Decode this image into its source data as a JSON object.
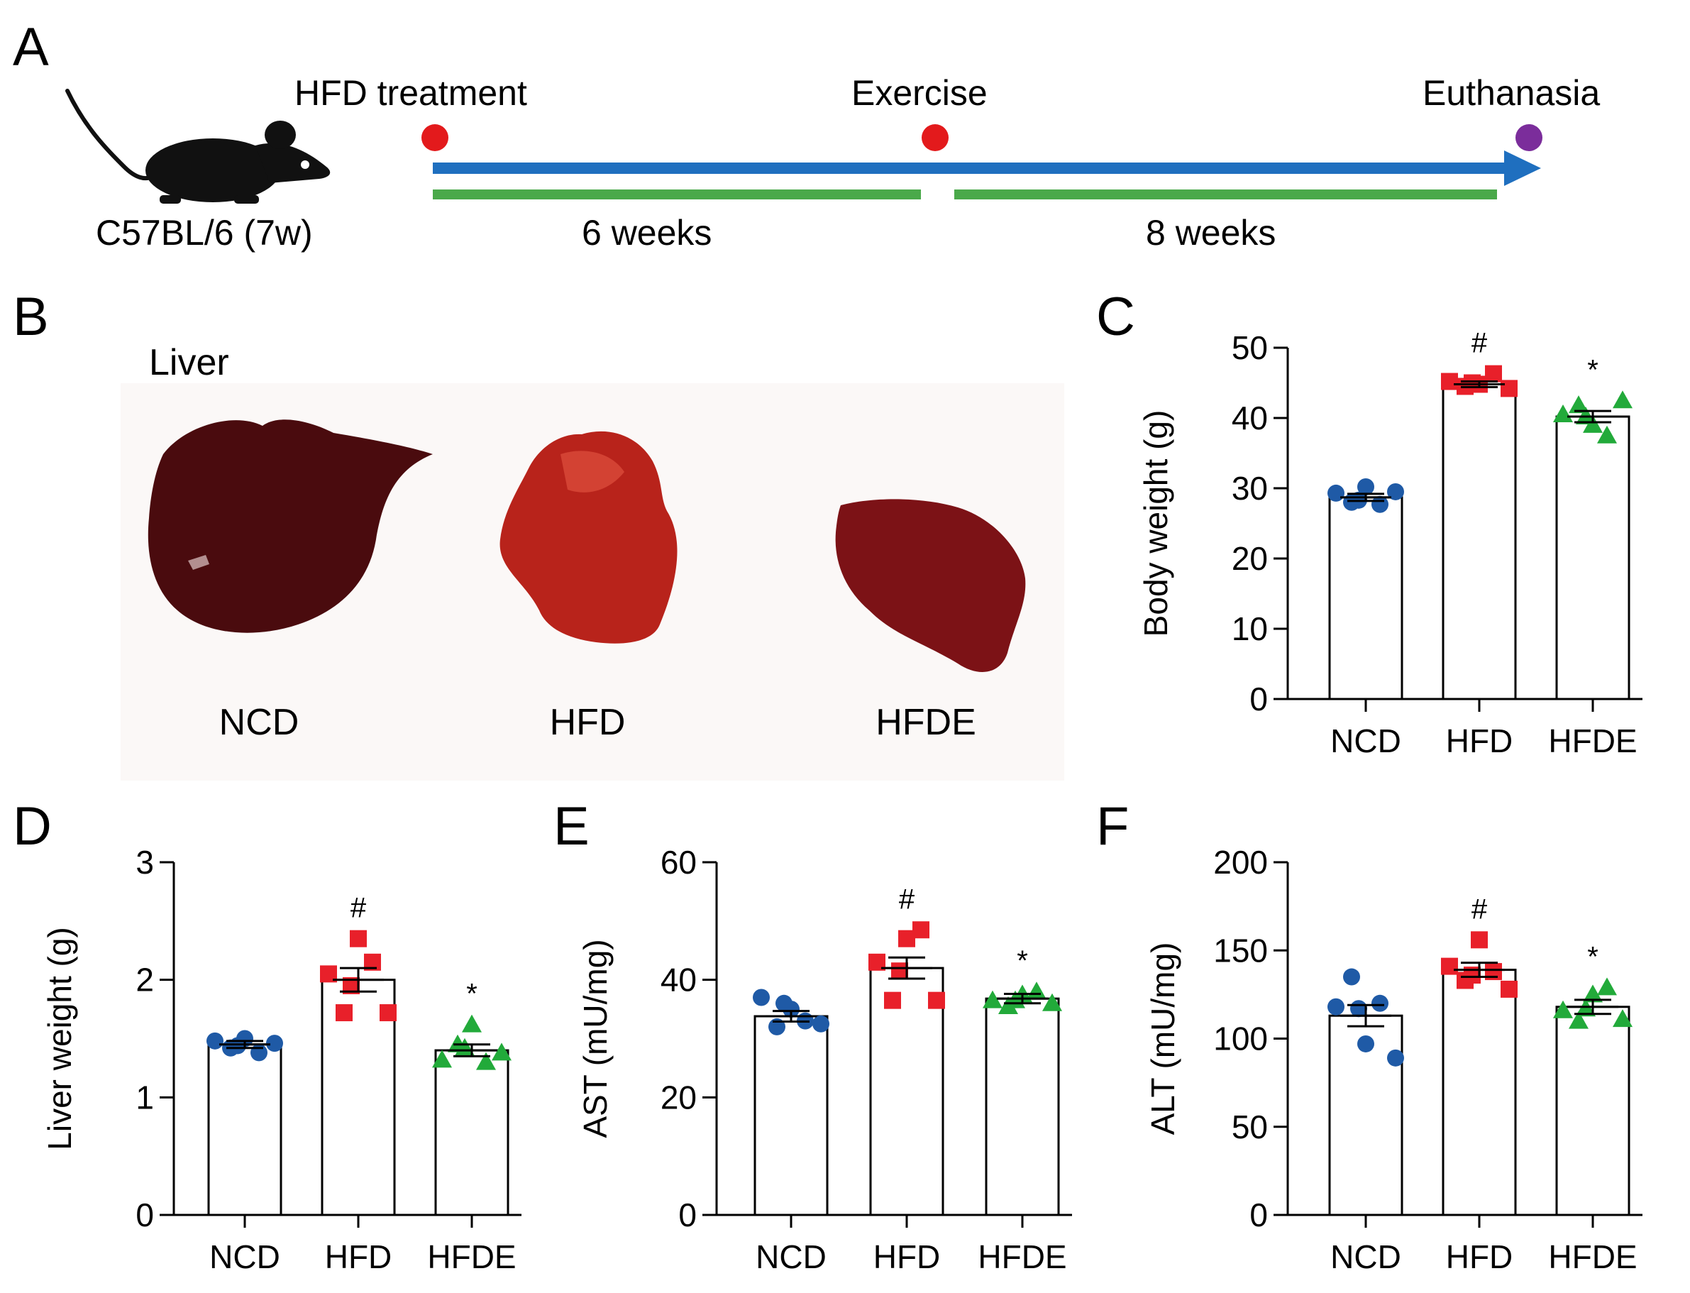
{
  "panels": {
    "a": "A",
    "b": "B",
    "c": "C",
    "d": "D",
    "e": "E",
    "f": "F"
  },
  "timeline": {
    "mouse_label": "C57BL/6 (7w)",
    "events": [
      "HFD treatment",
      "Exercise",
      "Euthanasia"
    ],
    "durations": [
      "6 weeks",
      "8 weeks"
    ],
    "colors": {
      "event_start": "#e31a1c",
      "event_end": "#7b2d9b",
      "arrow": "#1f6fbf",
      "bar": "#4aa94a"
    }
  },
  "liver_photo": {
    "title": "Liver",
    "groups": [
      "NCD",
      "HFD",
      "HFDE"
    ],
    "colors": {
      "ncd": "#4a0b0e",
      "hfd": "#b8231b",
      "hfde": "#7c1216"
    }
  },
  "group_colors": {
    "NCD": "#1f5aa6",
    "HFD": "#e8202a",
    "HFDE": "#22aa3a"
  },
  "chart_data": [
    {
      "id": "C",
      "type": "bar",
      "ylabel": "Body weight (g)",
      "categories": [
        "NCD",
        "HFD",
        "HFDE"
      ],
      "ylim": [
        0,
        50
      ],
      "yticks": [
        0,
        10,
        20,
        30,
        40,
        50
      ],
      "ytick_labels": [
        "0",
        "10",
        "20",
        "30",
        "40",
        "50"
      ],
      "means": [
        28.7,
        44.8,
        40.2
      ],
      "sem": [
        0.5,
        0.4,
        0.8
      ],
      "points": [
        [
          29.3,
          28.0,
          30.2,
          27.7,
          29.5,
          28.3
        ],
        [
          45.2,
          44.5,
          44.8,
          46.3,
          44.2,
          45.0
        ],
        [
          40.5,
          41.8,
          39.0,
          37.5,
          42.5,
          40.2
        ]
      ],
      "sig_labels": [
        "",
        "#",
        "*"
      ]
    },
    {
      "id": "D",
      "type": "bar",
      "ylabel": "Liver weight (g)",
      "categories": [
        "NCD",
        "HFD",
        "HFDE"
      ],
      "ylim": [
        0,
        3
      ],
      "yticks": [
        0,
        1,
        2,
        3
      ],
      "ytick_labels": [
        "0",
        "1",
        "2",
        "3"
      ],
      "means": [
        1.45,
        2.0,
        1.4
      ],
      "sem": [
        0.03,
        0.1,
        0.05
      ],
      "points": [
        [
          1.48,
          1.42,
          1.5,
          1.38,
          1.46,
          1.44
        ],
        [
          2.05,
          1.72,
          2.35,
          2.15,
          1.72,
          1.95
        ],
        [
          1.32,
          1.45,
          1.62,
          1.3,
          1.38,
          1.42
        ]
      ],
      "sig_labels": [
        "",
        "#",
        "*"
      ]
    },
    {
      "id": "E",
      "type": "bar",
      "ylabel": "AST (mU/mg)",
      "categories": [
        "NCD",
        "HFD",
        "HFDE"
      ],
      "ylim": [
        0,
        60
      ],
      "yticks": [
        0,
        20,
        40,
        60
      ],
      "ytick_labels": [
        "0",
        "20",
        "40",
        "60"
      ],
      "means": [
        33.8,
        42.0,
        36.8
      ],
      "sem": [
        0.9,
        1.8,
        0.8
      ],
      "points": [
        [
          37.0,
          32.0,
          35.0,
          33.0,
          32.5,
          36.0
        ],
        [
          43.0,
          36.5,
          47.0,
          48.5,
          36.5,
          41.5
        ],
        [
          36.5,
          35.5,
          37.5,
          38.0,
          36.0,
          36.5
        ]
      ],
      "sig_labels": [
        "",
        "#",
        "*"
      ]
    },
    {
      "id": "F",
      "type": "bar",
      "ylabel": "ALT (mU/mg)",
      "categories": [
        "NCD",
        "HFD",
        "HFDE"
      ],
      "ylim": [
        0,
        200
      ],
      "yticks": [
        0,
        50,
        100,
        150,
        200
      ],
      "ytick_labels": [
        "0",
        "50",
        "100",
        "150",
        "200"
      ],
      "means": [
        113,
        139,
        118
      ],
      "sem": [
        6,
        4,
        4
      ],
      "points": [
        [
          118,
          135,
          97,
          120,
          89,
          117
        ],
        [
          141,
          133,
          156,
          138,
          128,
          136
        ],
        [
          116,
          110,
          125,
          129,
          111,
          117
        ]
      ],
      "sig_labels": [
        "",
        "#",
        "*"
      ]
    }
  ]
}
